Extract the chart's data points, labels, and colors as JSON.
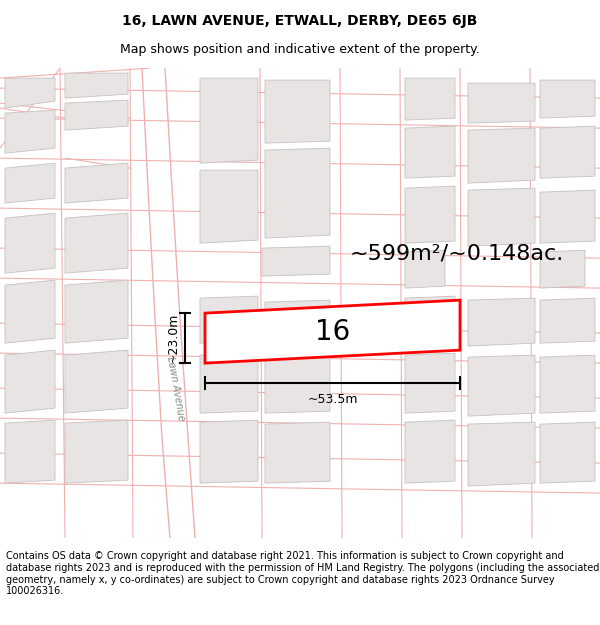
{
  "title_line1": "16, LAWN AVENUE, ETWALL, DERBY, DE65 6JB",
  "title_line2": "Map shows position and indicative extent of the property.",
  "footer_text": "Contains OS data © Crown copyright and database right 2021. This information is subject to Crown copyright and database rights 2023 and is reproduced with the permission of HM Land Registry. The polygons (including the associated geometry, namely x, y co-ordinates) are subject to Crown copyright and database rights 2023 Ordnance Survey 100026316.",
  "area_label": "~599m²/~0.148ac.",
  "property_number": "16",
  "width_label": "~53.5m",
  "height_label": "~23.0m",
  "street_label": "Lawn Avenue",
  "map_bg": "#ffffff",
  "building_fill": "#e8e4e4",
  "building_edge": "#c8c0c0",
  "road_outline": "#f0b0b0",
  "highlight_color": "#ff0000",
  "dim_line_color": "#000000",
  "title_fontsize": 10,
  "subtitle_fontsize": 9,
  "footer_fontsize": 7,
  "area_fontsize": 16,
  "number_fontsize": 20
}
